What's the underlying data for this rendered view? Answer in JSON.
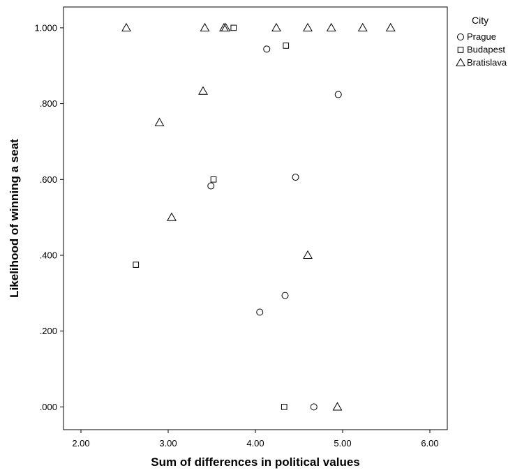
{
  "chart_data": {
    "type": "scatter",
    "xlabel": "Sum of differences in political values",
    "ylabel": "Likelihood of winning a seat",
    "xlim": [
      1.8,
      6.2
    ],
    "ylim": [
      -0.06,
      1.055
    ],
    "x_ticks": [
      2.0,
      3.0,
      4.0,
      5.0,
      6.0
    ],
    "x_tick_labels": [
      "2.00",
      "3.00",
      "4.00",
      "5.00",
      "6.00"
    ],
    "y_ticks": [
      0.0,
      0.2,
      0.4,
      0.6,
      0.8,
      1.0
    ],
    "y_tick_labels": [
      ".000",
      ".200",
      ".400",
      ".600",
      ".800",
      "1.000"
    ],
    "grid": false,
    "legend": {
      "title": "City",
      "position": "right"
    },
    "series": [
      {
        "name": "Prague",
        "marker": "circle",
        "points": [
          [
            4.13,
            0.944
          ],
          [
            4.95,
            0.824
          ],
          [
            3.49,
            0.583
          ],
          [
            4.46,
            0.606
          ],
          [
            4.34,
            0.294
          ],
          [
            4.05,
            0.25
          ],
          [
            4.67,
            0.0
          ]
        ]
      },
      {
        "name": "Budapest",
        "marker": "square",
        "points": [
          [
            3.75,
            1.0
          ],
          [
            4.35,
            0.953
          ],
          [
            3.52,
            0.6
          ],
          [
            2.63,
            0.375
          ],
          [
            4.33,
            0.0
          ]
        ]
      },
      {
        "name": "Bratislava",
        "marker": "triangle",
        "points": [
          [
            2.52,
            1.0
          ],
          [
            3.42,
            1.0
          ],
          [
            3.64,
            1.0
          ],
          [
            3.66,
            1.0
          ],
          [
            4.24,
            1.0
          ],
          [
            4.6,
            1.0
          ],
          [
            4.87,
            1.0
          ],
          [
            5.23,
            1.0
          ],
          [
            5.55,
            1.0
          ],
          [
            3.4,
            0.833
          ],
          [
            2.9,
            0.75
          ],
          [
            3.04,
            0.5
          ],
          [
            4.6,
            0.4
          ],
          [
            4.94,
            0.0
          ]
        ]
      }
    ]
  }
}
